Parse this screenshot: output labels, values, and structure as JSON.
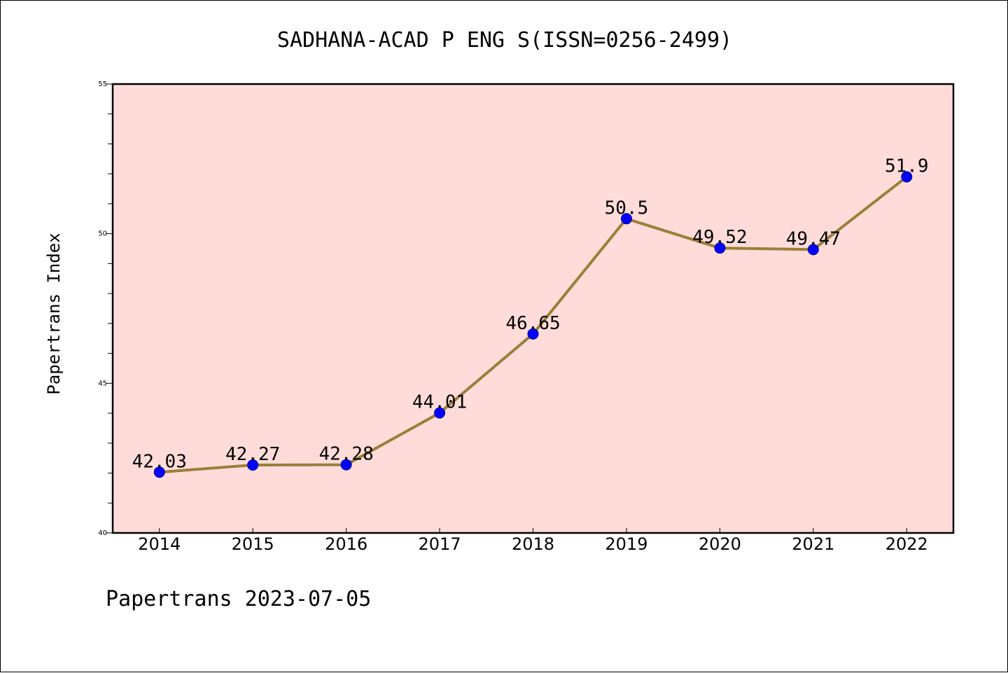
{
  "chart_data": {
    "type": "line",
    "title": "SADHANA-ACAD P ENG S(ISSN=0256-2499)",
    "ylabel": "Papertrans Index",
    "xlabel": "",
    "footer": "Papertrans 2023-07-05",
    "x": [
      "2014",
      "2015",
      "2016",
      "2017",
      "2018",
      "2019",
      "2020",
      "2021",
      "2022"
    ],
    "values": [
      42.03,
      42.27,
      42.28,
      44.01,
      46.65,
      50.5,
      49.52,
      49.47,
      51.9
    ],
    "value_labels": [
      "42.03",
      "42.27",
      "42.28",
      "44.01",
      "46.65",
      "50.5",
      "49.52",
      "49.47",
      "51.9"
    ],
    "ylim": [
      40,
      55
    ],
    "yticks": [
      40,
      45,
      50,
      55
    ],
    "grid": false,
    "colors": {
      "plot_background": "#ffdcd9",
      "line": "#9b7e3a",
      "marker": "#0000ff"
    }
  }
}
